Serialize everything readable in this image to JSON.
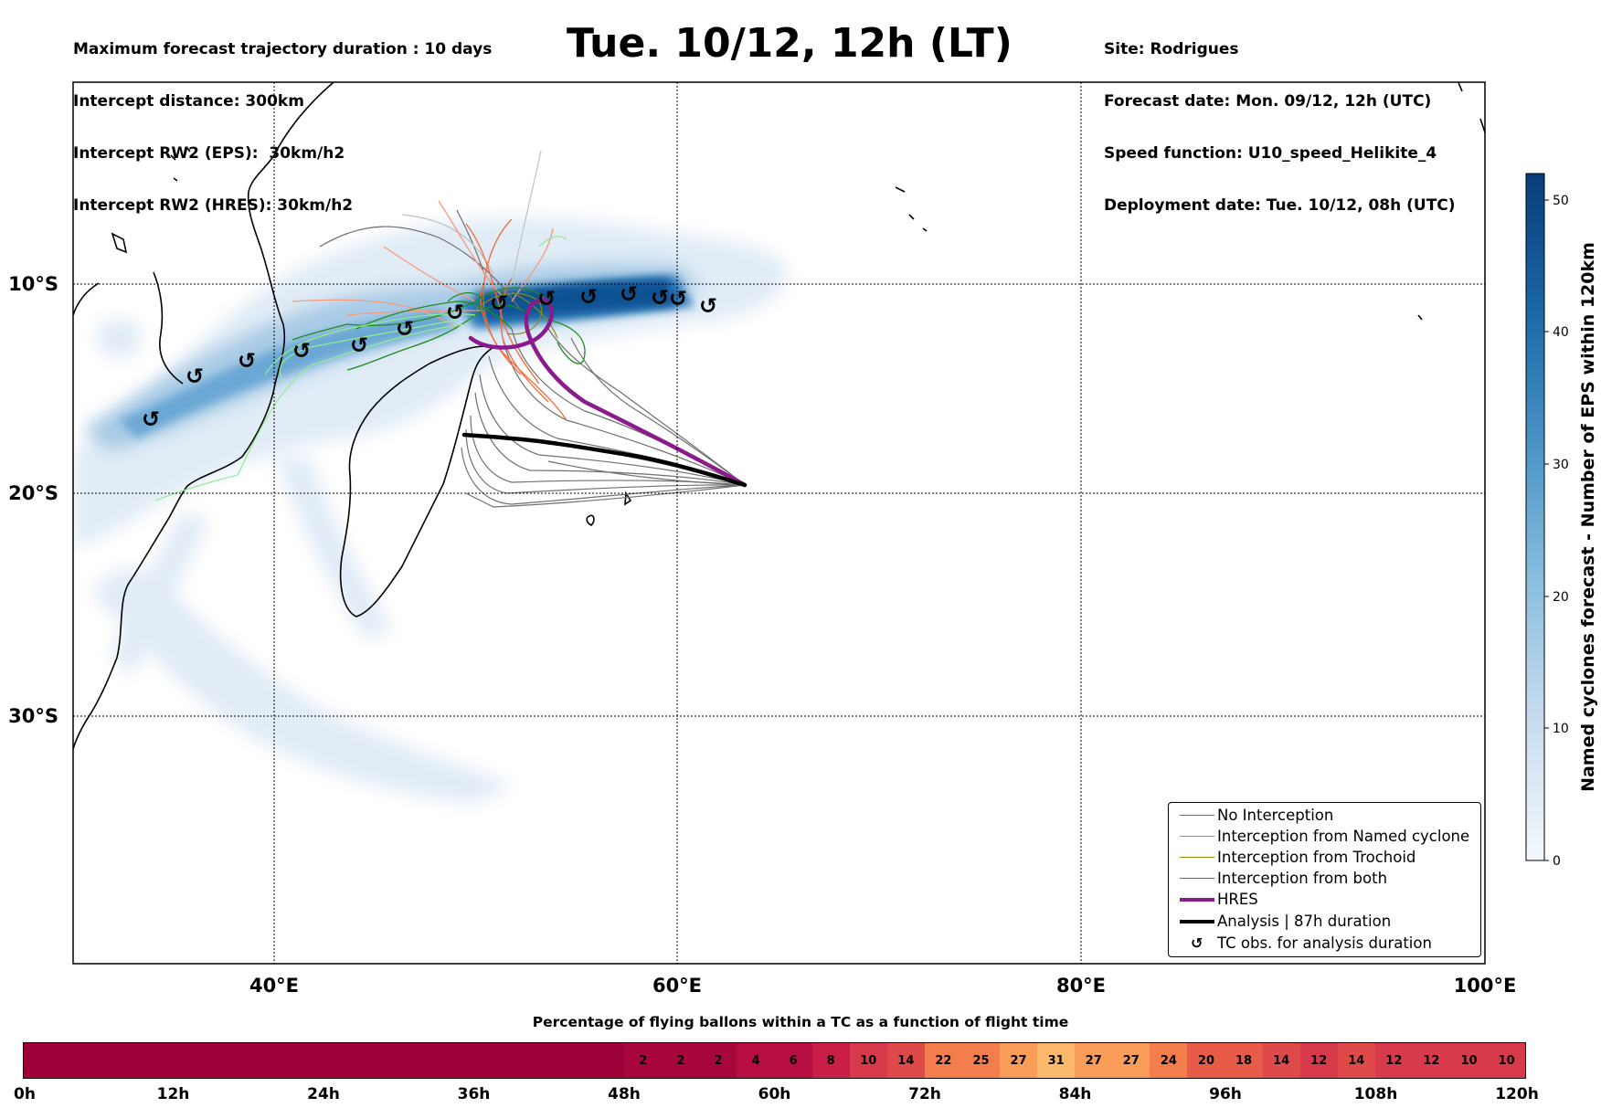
{
  "header": {
    "left_lines": [
      "Maximum forecast trajectory duration : 10 days",
      "Intercept distance: 300km",
      "Intercept RW2 (EPS):  30km/h2",
      "Intercept RW2 (HRES): 30km/h2"
    ],
    "title": "Tue. 10/12, 12h (LT)",
    "right_lines": [
      "Site: Rodrigues",
      "Forecast date: Mon. 09/12, 12h (UTC)",
      "Speed function: U10_speed_Helikite_4",
      "Deployment date: Tue. 10/12, 08h (UTC)"
    ]
  },
  "map": {
    "lat_labels": [
      "10°S",
      "20°S",
      "30°S"
    ],
    "lon_labels": [
      "40°E",
      "60°E",
      "80°E",
      "100°E"
    ],
    "lon_range": [
      30,
      100
    ],
    "lat_range": [
      -43,
      1
    ],
    "colors": {
      "no_interception": "#707070",
      "named_cyclone": "#f26b3a",
      "trochoid": "#8c8c00",
      "both": "#1e8c1e",
      "hres": "#8b1a8b",
      "analysis": "#000000"
    }
  },
  "colorbar": {
    "label": "Named cyclones forecast - Number of EPS within 120km",
    "ticks": [
      "0",
      "10",
      "20",
      "30",
      "40",
      "50"
    ],
    "range": [
      0,
      52
    ]
  },
  "legend": {
    "items": [
      {
        "label": "No Interception",
        "color": "#707070",
        "width": 1.5,
        "type": "line"
      },
      {
        "label": "Interception from Named cyclone",
        "color": "#f26b3a",
        "width": 1.5,
        "type": "line"
      },
      {
        "label": "Interception from Trochoid",
        "color": "#8c8c00",
        "width": 1.5,
        "type": "line"
      },
      {
        "label": "Interception from both",
        "color": "#1e8c1e",
        "width": 1.5,
        "type": "line"
      },
      {
        "label": "HRES",
        "color": "#8b1a8b",
        "width": 4,
        "type": "line"
      },
      {
        "label": "Analysis | 87h duration",
        "color": "#000000",
        "width": 4,
        "type": "line"
      },
      {
        "label": "TC obs. for analysis duration",
        "color": "#000000",
        "width": 0,
        "type": "symbol",
        "symbol": "↺"
      }
    ]
  },
  "flight_bar": {
    "title": "Percentage of flying ballons within a TC as a function of flight time",
    "cells": [
      "",
      "",
      "",
      "",
      "",
      "",
      "",
      "",
      "",
      "",
      "",
      "",
      "",
      "",
      "",
      "",
      "2",
      "2",
      "2",
      "4",
      "6",
      "8",
      "10",
      "14",
      "22",
      "25",
      "27",
      "31",
      "27",
      "27",
      "24",
      "20",
      "18",
      "14",
      "12",
      "14",
      "12",
      "12",
      "10",
      "10"
    ],
    "values": [
      100,
      100,
      100,
      100,
      100,
      100,
      100,
      100,
      100,
      100,
      100,
      100,
      100,
      100,
      100,
      100,
      2,
      2,
      2,
      4,
      6,
      8,
      10,
      14,
      22,
      25,
      27,
      31,
      27,
      27,
      24,
      20,
      18,
      14,
      12,
      14,
      12,
      12,
      10,
      10
    ],
    "tick_labels": [
      "0h",
      "12h",
      "24h",
      "36h",
      "48h",
      "60h",
      "72h",
      "84h",
      "96h",
      "108h",
      "120h"
    ]
  }
}
